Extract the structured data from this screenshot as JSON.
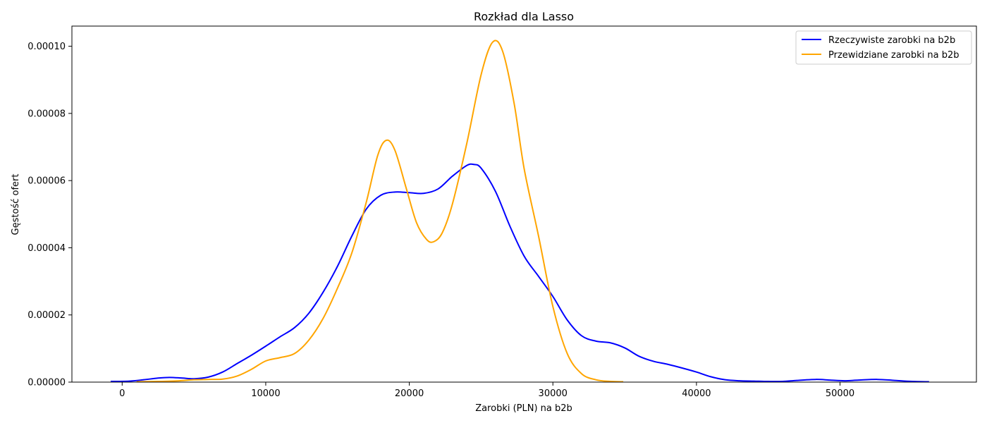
{
  "chart_data": {
    "type": "line",
    "title": "Rozkład dla Lasso",
    "xlabel": "Zarobki (PLN) na b2b",
    "ylabel": "Gęstość ofert",
    "xlim": [
      -3500,
      59500
    ],
    "ylim": [
      0,
      0.000106
    ],
    "xticks": [
      0,
      10000,
      20000,
      30000,
      40000,
      50000
    ],
    "xtick_labels": [
      "0",
      "10000",
      "20000",
      "30000",
      "40000",
      "50000"
    ],
    "yticks": [
      0,
      2e-05,
      4e-05,
      6e-05,
      8e-05,
      0.0001
    ],
    "ytick_labels": [
      "0.00000",
      "0.00002",
      "0.00004",
      "0.00006",
      "0.00008",
      "0.00010"
    ],
    "grid": false,
    "legend_position": "top-right",
    "series": [
      {
        "name": "Rzeczywiste zarobki na b2b",
        "color": "#0000ff",
        "points": [
          [
            -800,
            2e-07
          ],
          [
            500,
            3e-07
          ],
          [
            1500,
            7e-07
          ],
          [
            2500,
            1.2e-06
          ],
          [
            3300,
            1.4e-06
          ],
          [
            4200,
            1.2e-06
          ],
          [
            5000,
            1e-06
          ],
          [
            6000,
            1.5e-06
          ],
          [
            7000,
            3e-06
          ],
          [
            8000,
            5.5e-06
          ],
          [
            9000,
            8e-06
          ],
          [
            10000,
            1.07e-05
          ],
          [
            11000,
            1.35e-05
          ],
          [
            12000,
            1.62e-05
          ],
          [
            13000,
            2.05e-05
          ],
          [
            14000,
            2.68e-05
          ],
          [
            15000,
            3.45e-05
          ],
          [
            16000,
            4.35e-05
          ],
          [
            17000,
            5.15e-05
          ],
          [
            18000,
            5.56e-05
          ],
          [
            19000,
            5.66e-05
          ],
          [
            20000,
            5.64e-05
          ],
          [
            21000,
            5.62e-05
          ],
          [
            22000,
            5.75e-05
          ],
          [
            23000,
            6.13e-05
          ],
          [
            24000,
            6.45e-05
          ],
          [
            24500,
            6.48e-05
          ],
          [
            25000,
            6.37e-05
          ],
          [
            26000,
            5.68e-05
          ],
          [
            27000,
            4.65e-05
          ],
          [
            28000,
            3.75e-05
          ],
          [
            29000,
            3.15e-05
          ],
          [
            30000,
            2.55e-05
          ],
          [
            31000,
            1.85e-05
          ],
          [
            32000,
            1.38e-05
          ],
          [
            33000,
            1.22e-05
          ],
          [
            34000,
            1.17e-05
          ],
          [
            35000,
            1.02e-05
          ],
          [
            36000,
            7.7e-06
          ],
          [
            37000,
            6.2e-06
          ],
          [
            38000,
            5.3e-06
          ],
          [
            39000,
            4.2e-06
          ],
          [
            40000,
            3e-06
          ],
          [
            41000,
            1.6e-06
          ],
          [
            42000,
            7e-07
          ],
          [
            43000,
            4e-07
          ],
          [
            44000,
            3e-07
          ],
          [
            45000,
            2e-07
          ],
          [
            46000,
            2e-07
          ],
          [
            47000,
            5e-07
          ],
          [
            48300,
            8e-07
          ],
          [
            49300,
            6e-07
          ],
          [
            50300,
            4e-07
          ],
          [
            51300,
            6e-07
          ],
          [
            52600,
            8e-07
          ],
          [
            53800,
            5e-07
          ],
          [
            55000,
            2e-07
          ],
          [
            56200,
            1e-07
          ]
        ]
      },
      {
        "name": "Przewidziane zarobki na b2b",
        "color": "#ffa500",
        "points": [
          [
            1000,
            1e-07
          ],
          [
            2500,
            2e-07
          ],
          [
            4000,
            4e-07
          ],
          [
            5000,
            7e-07
          ],
          [
            6000,
            8e-07
          ],
          [
            7000,
            9e-07
          ],
          [
            8000,
            1.8e-06
          ],
          [
            9000,
            3.8e-06
          ],
          [
            10000,
            6.3e-06
          ],
          [
            11000,
            7.3e-06
          ],
          [
            12000,
            8.5e-06
          ],
          [
            13000,
            1.25e-05
          ],
          [
            14000,
            1.9e-05
          ],
          [
            15000,
            2.8e-05
          ],
          [
            16000,
            3.85e-05
          ],
          [
            17000,
            5.35e-05
          ],
          [
            17800,
            6.75e-05
          ],
          [
            18400,
            7.2e-05
          ],
          [
            19000,
            6.9e-05
          ],
          [
            19800,
            5.75e-05
          ],
          [
            20500,
            4.75e-05
          ],
          [
            21200,
            4.25e-05
          ],
          [
            21700,
            4.18e-05
          ],
          [
            22300,
            4.45e-05
          ],
          [
            23000,
            5.3e-05
          ],
          [
            24000,
            7.1e-05
          ],
          [
            25000,
            9.15e-05
          ],
          [
            25800,
            0.0001012
          ],
          [
            26500,
            9.85e-05
          ],
          [
            27300,
            8.3e-05
          ],
          [
            28000,
            6.35e-05
          ],
          [
            29000,
            4.35e-05
          ],
          [
            30000,
            2.25e-05
          ],
          [
            31000,
            8.5e-06
          ],
          [
            32000,
            2.5e-06
          ],
          [
            33000,
            7e-07
          ],
          [
            34000,
            2e-07
          ],
          [
            34900,
            1e-07
          ]
        ]
      }
    ]
  }
}
